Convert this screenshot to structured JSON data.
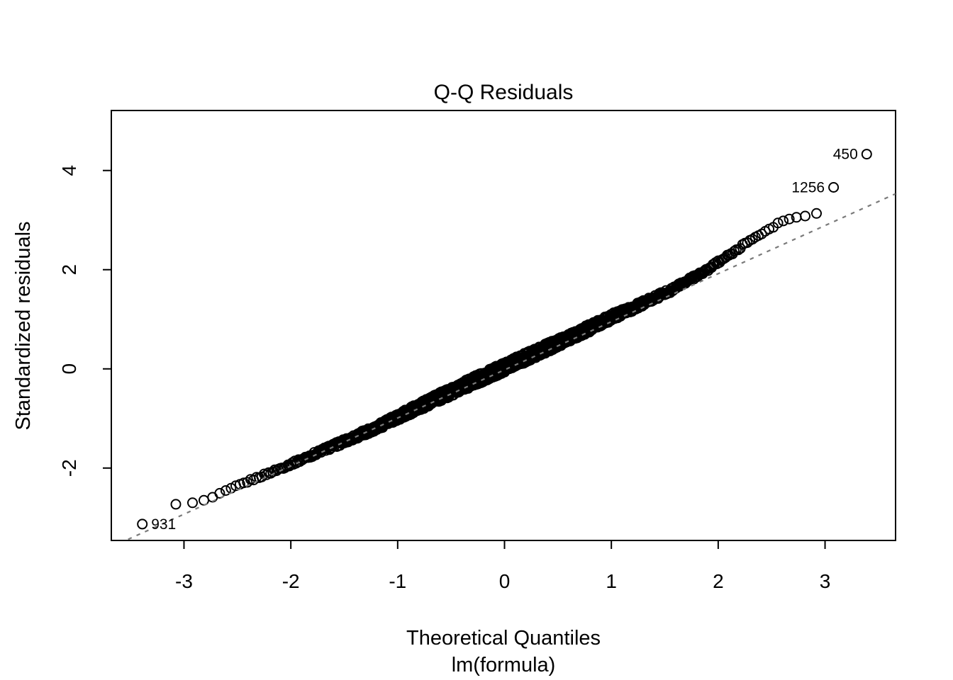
{
  "chart_data": {
    "type": "scatter",
    "subtype": "qq-plot",
    "title": "Q-Q Residuals",
    "xlabel": "Theoretical Quantiles",
    "xlabel_line2": "lm(formula)",
    "ylabel": "Standardized residuals",
    "xlim": [
      -3.68,
      3.66
    ],
    "ylim": [
      -3.46,
      5.21
    ],
    "x_ticks": [
      -3,
      -2,
      -1,
      0,
      1,
      2,
      3
    ],
    "y_ticks": [
      -2,
      0,
      2,
      4
    ],
    "grid": false,
    "legend": null,
    "n_points": 1430,
    "point_style": {
      "shape": "open-circle",
      "radius_px": 6.5,
      "stroke_px": 2,
      "color": "#000000"
    },
    "reference_line": {
      "style": "dashed",
      "slope": 0.97,
      "intercept": -0.02,
      "color": "#7a7a7a"
    },
    "qq_curve_points": [
      [
        -3.4,
        -3.13
      ],
      [
        -3.08,
        -2.74
      ],
      [
        -2.95,
        -2.71
      ],
      [
        -2.85,
        -2.69
      ],
      [
        -2.72,
        -2.58
      ],
      [
        -2.6,
        -2.46
      ],
      [
        -2.5,
        -2.36
      ],
      [
        -2.38,
        -2.25
      ],
      [
        -2.25,
        -2.14
      ],
      [
        -2.1,
        -2.01
      ],
      [
        -1.9,
        -1.83
      ],
      [
        -1.7,
        -1.64
      ],
      [
        -1.45,
        -1.42
      ],
      [
        -1.2,
        -1.18
      ],
      [
        -0.9,
        -0.87
      ],
      [
        -0.6,
        -0.56
      ],
      [
        -0.3,
        -0.26
      ],
      [
        0.0,
        0.03
      ],
      [
        0.3,
        0.33
      ],
      [
        0.6,
        0.62
      ],
      [
        0.85,
        0.88
      ],
      [
        1.02,
        1.06
      ],
      [
        1.2,
        1.22
      ],
      [
        1.4,
        1.43
      ],
      [
        1.55,
        1.58
      ],
      [
        1.7,
        1.76
      ],
      [
        1.85,
        1.93
      ],
      [
        2.02,
        2.18
      ],
      [
        2.15,
        2.36
      ],
      [
        2.25,
        2.52
      ],
      [
        2.36,
        2.68
      ],
      [
        2.45,
        2.78
      ],
      [
        2.51,
        2.86
      ],
      [
        2.57,
        2.98
      ],
      [
        2.65,
        3.01
      ],
      [
        2.75,
        3.05
      ],
      [
        2.85,
        3.09
      ],
      [
        2.92,
        3.12
      ]
    ],
    "labeled_outliers": [
      {
        "label": "450",
        "x": 3.39,
        "y": 4.33,
        "label_side": "left"
      },
      {
        "label": "1256",
        "x": 3.08,
        "y": 3.66,
        "label_side": "left"
      },
      {
        "label": "931",
        "x": -3.39,
        "y": -3.13,
        "label_side": "right"
      }
    ],
    "colors": {
      "points": "#000000",
      "reference_line": "#7a7a7a",
      "background": "#ffffff",
      "text": "#000000"
    }
  }
}
